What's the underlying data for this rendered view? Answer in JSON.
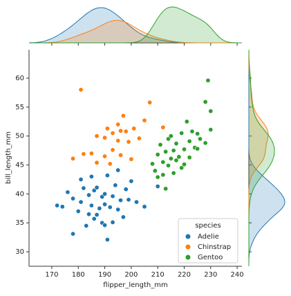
{
  "chart_data": {
    "type": "scatter",
    "x_label": "flipper_length_mm",
    "y_label": "bill_length_mm",
    "xlim": [
      161.4,
      241.8
    ],
    "ylim": [
      27.5,
      64.9
    ],
    "xticks": [
      170,
      180,
      190,
      200,
      210,
      220,
      230,
      240
    ],
    "yticks": [
      30,
      35,
      40,
      45,
      50,
      55,
      60
    ],
    "legend_title": "species",
    "legend_position": "lower-right",
    "marginals": "kde",
    "series": [
      {
        "name": "Adelie",
        "color": "#1f77b4",
        "x": [
          172,
          174,
          176,
          178,
          178,
          180,
          181,
          181,
          182,
          183,
          184,
          184,
          185,
          185,
          186,
          186,
          187,
          187,
          188,
          189,
          189,
          190,
          190,
          190,
          191,
          191,
          192,
          193,
          193,
          194,
          195,
          195,
          196,
          197,
          198,
          199,
          200,
          202,
          205,
          210
        ],
        "values": [
          38,
          37.8,
          40.3,
          33.1,
          39.2,
          37,
          42.5,
          38.6,
          41,
          34.5,
          36.5,
          39.8,
          38,
          43,
          35.7,
          40.6,
          36.4,
          41.1,
          37.5,
          39.5,
          35,
          40,
          34.6,
          38.2,
          43.2,
          32.1,
          37.7,
          39.6,
          35.1,
          41.5,
          37.3,
          44.1,
          38.9,
          36,
          40.8,
          39,
          42.2,
          38.6,
          37.8,
          41.3
        ]
      },
      {
        "name": "Chinstrap",
        "color": "#ff7f0e",
        "x": [
          178,
          181,
          182,
          185,
          187,
          187,
          190,
          190,
          191,
          192,
          193,
          193,
          195,
          195,
          196,
          196,
          197,
          198,
          199,
          200,
          201,
          203,
          205,
          207,
          212
        ],
        "values": [
          46.1,
          58,
          46.9,
          47,
          50,
          45.4,
          49.7,
          46.5,
          51.3,
          45.2,
          50.5,
          47.6,
          52,
          49.2,
          50.9,
          46.7,
          53.5,
          50.8,
          49,
          46,
          51.3,
          49.6,
          52.7,
          55.8,
          51.5
        ]
      },
      {
        "name": "Gentoo",
        "color": "#2ca02c",
        "x": [
          208,
          209,
          210,
          210,
          211,
          212,
          212,
          213,
          213,
          214,
          214,
          215,
          215,
          216,
          216,
          217,
          217,
          218,
          219,
          219,
          220,
          220,
          221,
          222,
          222,
          223,
          224,
          225,
          226,
          228,
          228,
          229,
          230,
          230,
          225
        ],
        "values": [
          45.2,
          44,
          46.8,
          42.9,
          48.5,
          45.5,
          43.3,
          47.3,
          40.9,
          49.5,
          44.9,
          46.1,
          50,
          47.5,
          43.6,
          45.8,
          48.7,
          46.4,
          50.5,
          44.5,
          47.7,
          45.1,
          52.5,
          49.1,
          46.3,
          50.8,
          48,
          50.4,
          49.5,
          55.9,
          48.8,
          59.6,
          54.3,
          51.1,
          47.8
        ]
      }
    ]
  }
}
